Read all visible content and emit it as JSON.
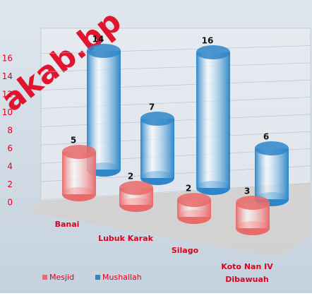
{
  "chart_data": {
    "type": "cylinder",
    "watermark": "akab.bp",
    "categories": [
      "Banai",
      "Lubuk Karak",
      "Silago",
      "Koto Nan IV Dibawuah"
    ],
    "series": [
      {
        "name": "Mesjid",
        "color": "#e86a6a",
        "values": [
          5,
          2,
          2,
          3
        ]
      },
      {
        "name": "Mushallah",
        "color": "#2e86c8",
        "values": [
          14,
          7,
          16,
          6
        ]
      }
    ],
    "ylim": [
      0,
      16
    ],
    "yticks": [
      0,
      2,
      4,
      6,
      8,
      10,
      12,
      14,
      16
    ],
    "grid": true,
    "legend": "bottom"
  }
}
